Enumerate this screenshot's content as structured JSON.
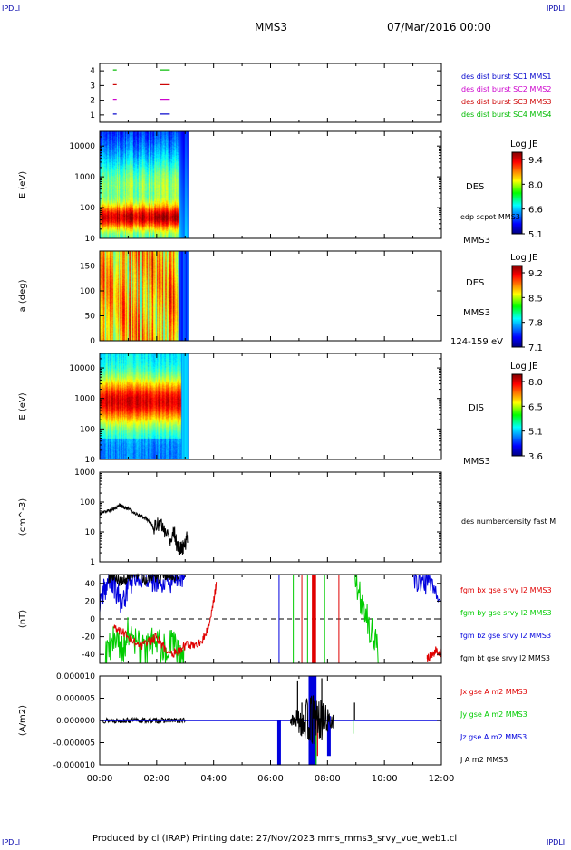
{
  "header": {
    "corner_left_top": "IPDLI",
    "corner_right_top": "IPDLI",
    "corner_left_bottom": "IPDLI",
    "corner_right_bottom": "IPDLI",
    "spacecraft": "MMS3",
    "datetime": "07/Mar/2016 00:00"
  },
  "footer": {
    "text": "Produced by cl (IRAP)   Printing date: 27/Nov/2023   mms_mms3_srvy_vue_web1.cl"
  },
  "colors": {
    "mms1": "#0000cc",
    "mms2": "#cc00cc",
    "mms3": "#cc0000",
    "mms4": "#00bb00",
    "bx": "#e00000",
    "by": "#00cc00",
    "bz": "#0000dd",
    "bt": "#000000"
  },
  "chart_data": [
    {
      "type": "scatter",
      "id": "burst",
      "yticks": [
        "4",
        "3",
        "2",
        "1"
      ],
      "ylim": [
        0.5,
        4.5
      ],
      "series": [
        {
          "name": "des dist burst SC1 MMS1",
          "level": 1,
          "color_key": "mms1",
          "x": [
            0.5,
            2.1,
            2.4
          ]
        },
        {
          "name": "des dist burst SC2 MMS2",
          "level": 2,
          "color_key": "mms2",
          "x": [
            0.5,
            2.1,
            2.4
          ]
        },
        {
          "name": "des dist burst SC3 MMS3",
          "level": 3,
          "color_key": "mms3",
          "x": [
            0.5,
            2.1,
            2.4
          ]
        },
        {
          "name": "des dist burst SC4 MMS4",
          "level": 4,
          "color_key": "mms4",
          "x": [
            0.5,
            2.1,
            2.4
          ]
        }
      ]
    },
    {
      "type": "heatmap",
      "id": "des_energy",
      "ylabel": "E (eV)",
      "yscale": "log",
      "ylim": [
        10,
        30000
      ],
      "yticks": [
        "10000",
        "1000",
        "100",
        "10"
      ],
      "xrange_data": [
        0,
        3.1
      ],
      "labels": [
        "DES",
        "edp scpot MMS3",
        "MMS3"
      ],
      "colorbar": {
        "title": "Log JE",
        "ticks": [
          "9.4",
          "8.0",
          "6.6",
          "5.1"
        ],
        "range": [
          5.1,
          9.6
        ]
      }
    },
    {
      "type": "heatmap",
      "id": "des_pitch",
      "ylabel": "a (deg)",
      "ylim": [
        0,
        180
      ],
      "yticks": [
        "150",
        "100",
        "50",
        "0"
      ],
      "xrange_data": [
        0,
        3.1
      ],
      "labels": [
        "DES",
        "MMS3",
        "124-159 eV"
      ],
      "colorbar": {
        "title": "Log JE",
        "ticks": [
          "9.2",
          "8.5",
          "7.8",
          "7.1"
        ],
        "range": [
          7.1,
          9.4
        ]
      }
    },
    {
      "type": "heatmap",
      "id": "dis_energy",
      "ylabel": "E (eV)",
      "yscale": "log",
      "ylim": [
        10,
        30000
      ],
      "yticks": [
        "10000",
        "1000",
        "100",
        "10"
      ],
      "xrange_data": [
        0,
        3.1
      ],
      "labels": [
        "DIS",
        "MMS3"
      ],
      "colorbar": {
        "title": "Log JE",
        "ticks": [
          "8.0",
          "6.5",
          "5.1",
          "3.6"
        ],
        "range": [
          3.6,
          8.5
        ]
      }
    },
    {
      "type": "line",
      "id": "density",
      "ylabel": "(cm^-3)",
      "yscale": "log",
      "ylim": [
        1,
        1000
      ],
      "yticks": [
        "1000",
        "100",
        "10",
        "1"
      ],
      "series": [
        {
          "name": "des numberdensity fast M",
          "color_key": "bt",
          "x": [
            0.0,
            0.2,
            0.4,
            0.6,
            0.7,
            0.8,
            1.0,
            1.2,
            1.4,
            1.6,
            1.8,
            1.9,
            2.0,
            2.2,
            2.4,
            2.5,
            2.6,
            2.7,
            2.8,
            2.9,
            3.0,
            3.1
          ],
          "y": [
            40,
            48,
            55,
            65,
            80,
            70,
            60,
            45,
            35,
            30,
            20,
            12,
            20,
            15,
            8,
            5,
            12,
            4,
            2.5,
            3,
            4,
            8
          ]
        }
      ]
    },
    {
      "type": "line",
      "id": "fgm",
      "ylabel": "(nT)",
      "ylim": [
        -50,
        50
      ],
      "yticks": [
        "40",
        "20",
        "0",
        "-20",
        "-40"
      ],
      "series": [
        {
          "name": "fgm bx gse srvy l2 MMS3",
          "color_key": "bx",
          "x": [
            0.5,
            0.8,
            1.2,
            1.5,
            1.8,
            2.0,
            2.2,
            2.5,
            2.8,
            3.0,
            3.3,
            3.6,
            3.8,
            4.0,
            4.1,
            11.5,
            11.7,
            11.8,
            12.0
          ],
          "y": [
            -10,
            -15,
            -25,
            -30,
            -25,
            -20,
            -30,
            -40,
            -35,
            -30,
            -30,
            -25,
            -10,
            20,
            40,
            -45,
            -40,
            -35,
            -40
          ]
        },
        {
          "name": "fgm by gse srvy l2 MMS3",
          "color_key": "by",
          "x": [
            0.2,
            0.5,
            0.8,
            1.0,
            1.3,
            1.6,
            1.9,
            2.2,
            2.5,
            2.8,
            3.0,
            8.9,
            9.2,
            9.5,
            9.8
          ],
          "y": [
            -40,
            -25,
            -35,
            -15,
            -30,
            -40,
            -20,
            -35,
            -25,
            -45,
            -50,
            50,
            20,
            -10,
            -40
          ]
        },
        {
          "name": "fgm bz gse srvy l2 MMS3",
          "color_key": "bz",
          "x": [
            0.0,
            0.2,
            0.4,
            0.6,
            0.8,
            1.0,
            1.2,
            1.5,
            1.8,
            2.0,
            2.3,
            2.6,
            2.8,
            3.0,
            11.0,
            11.3,
            11.6,
            12.0
          ],
          "y": [
            20,
            35,
            45,
            30,
            15,
            40,
            45,
            50,
            40,
            45,
            40,
            45,
            48,
            50,
            50,
            40,
            35,
            25
          ]
        },
        {
          "name": "fgm bt gse srvy l2 MMS3",
          "color_key": "bt",
          "x": [
            0.3,
            0.5,
            0.8,
            1.0,
            1.3,
            1.6,
            1.9,
            2.2,
            2.5,
            2.8
          ],
          "y": [
            45,
            50,
            42,
            48,
            50,
            44,
            50,
            46,
            50,
            48
          ]
        }
      ]
    },
    {
      "type": "line",
      "id": "current",
      "ylabel": "(A/m2)",
      "ylim": [
        -1e-05,
        1e-05
      ],
      "yticks": [
        "0.000010",
        "0.000005",
        "0.000000",
        "-0.000005",
        "-0.000010"
      ],
      "xticks": [
        "00:00",
        "02:00",
        "04:00",
        "06:00",
        "08:00",
        "10:00",
        "12:00"
      ],
      "xlim": [
        0,
        12
      ],
      "series": [
        {
          "name": "Jx gse A m2 MMS3",
          "color_key": "bx"
        },
        {
          "name": "Jy gse A m2 MMS3",
          "color_key": "by"
        },
        {
          "name": "Jz gse A m2 MMS3",
          "color_key": "bz"
        },
        {
          "name": "J A m2 MMS3",
          "color_key": "bt"
        }
      ]
    }
  ]
}
